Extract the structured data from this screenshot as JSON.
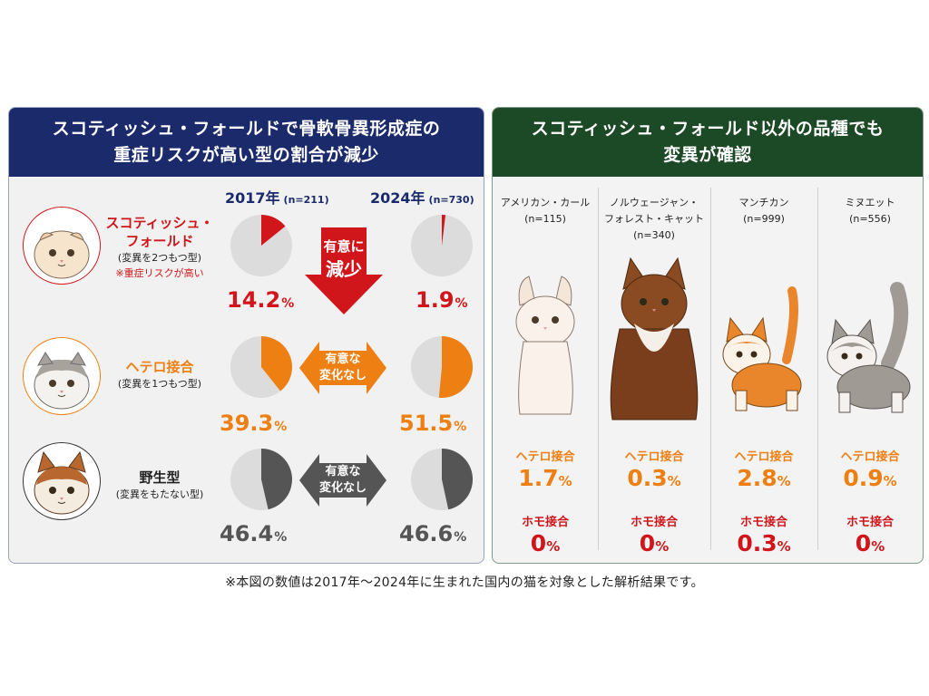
{
  "left": {
    "title_line1": "スコティッシュ・フォールドで骨軟骨異形成症の",
    "title_line2": "重症リスクが高い型の割合が減少",
    "years": [
      {
        "year": "2017年",
        "n": "(n=211)"
      },
      {
        "year": "2024年",
        "n": "(n=730)"
      }
    ],
    "rows": [
      {
        "name_line1": "スコティッシュ・",
        "name_line2": "フォールド",
        "desc": "(変異を2つもつ型)",
        "note": "※重症リスクが高い",
        "v2017": "14.2",
        "v2024": "1.9",
        "unit": "%",
        "frac2017": 0.142,
        "frac2024": 0.019,
        "color": "#d0161b",
        "arrow_text_line1": "有意に",
        "arrow_text_line2": "減少"
      },
      {
        "name_line1": "ヘテロ接合",
        "desc": "(変異を1つもつ型)",
        "v2017": "39.3",
        "v2024": "51.5",
        "unit": "%",
        "frac2017": 0.393,
        "frac2024": 0.515,
        "color": "#ee7f12",
        "arrow_text_line1": "有意な",
        "arrow_text_line2": "変化なし"
      },
      {
        "name_line1": "野生型",
        "desc": "(変異をもたない型)",
        "v2017": "46.4",
        "v2024": "46.6",
        "unit": "%",
        "frac2017": 0.464,
        "frac2024": 0.466,
        "color": "#555555",
        "arrow_text_line1": "有意な",
        "arrow_text_line2": "変化なし"
      }
    ]
  },
  "right": {
    "title_line1": "スコティッシュ・フォールド以外の品種でも",
    "title_line2": "変異が確認",
    "het_label": "ヘテロ接合",
    "hom_label": "ホモ接合",
    "unit": "%",
    "breeds": [
      {
        "name_line1": "アメリカン・カール",
        "name_line2": "(n=115)",
        "het": "1.7",
        "hom": "0"
      },
      {
        "name_line1": "ノルウェージャン・",
        "name_line2": "フォレスト・キャット",
        "name_line3": "(n=340)",
        "het": "0.3",
        "hom": "0"
      },
      {
        "name_line1": "マンチカン",
        "name_line2": "(n=999)",
        "het": "2.8",
        "hom": "0.3"
      },
      {
        "name_line1": "ミヌエット",
        "name_line2": "(n=556)",
        "het": "0.9",
        "hom": "0"
      }
    ]
  },
  "footnote": "※本図の数値は2017年～2024年に生まれた国内の猫を対象とした解析結果です。",
  "colors": {
    "navy": "#1b2a6b",
    "green": "#1d4a26",
    "red": "#d0161b",
    "orange": "#ee7f12",
    "gray": "#555555",
    "pie_bg": "#dcdcdc"
  }
}
